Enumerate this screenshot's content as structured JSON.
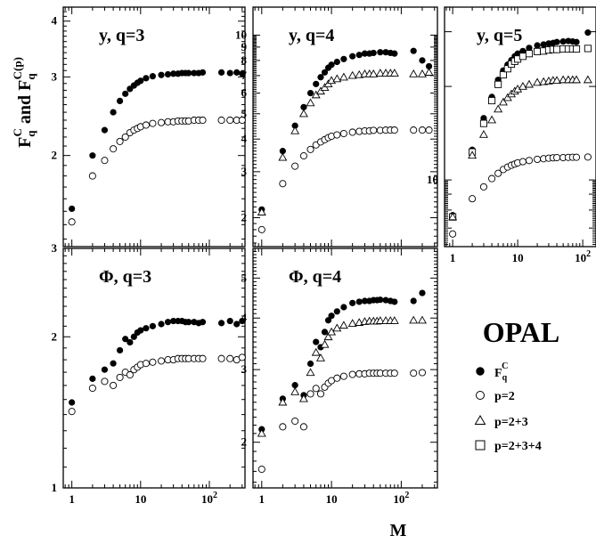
{
  "figure": {
    "ylabel_main": "F",
    "ylabel_sub": "q",
    "ylabel_sup": "C",
    "ylabel_and": " and ",
    "ylabel_sup2": "C(p)",
    "xlabel": "M",
    "experiment": "OPAL"
  },
  "legend": [
    {
      "symbol": "filled-circle",
      "label": "F",
      "sub": "q",
      "sup": "C"
    },
    {
      "symbol": "open-circle",
      "label": "p=2"
    },
    {
      "symbol": "open-triangle",
      "label": "p=2+3"
    },
    {
      "symbol": "open-square",
      "label": "p=2+3+4"
    }
  ],
  "chart_data": [
    {
      "type": "scatter",
      "title": "y, q=3",
      "xscale": "log",
      "yscale": "log",
      "xlim": [
        0.75,
        330
      ],
      "ylim": [
        1.25,
        4.3
      ],
      "x_ticks": [],
      "y_ticks": [
        "2",
        "3",
        "4"
      ],
      "series": [
        {
          "name": "F_q^C",
          "marker": "filled-circle",
          "x": [
            1,
            2,
            3,
            4,
            5,
            6,
            7,
            8,
            9,
            10,
            12,
            15,
            20,
            25,
            30,
            35,
            40,
            45,
            50,
            60,
            70,
            80,
            150,
            200,
            250,
            300
          ],
          "y": [
            1.52,
            2.0,
            2.28,
            2.5,
            2.65,
            2.75,
            2.82,
            2.87,
            2.91,
            2.94,
            2.98,
            3.01,
            3.03,
            3.04,
            3.05,
            3.05,
            3.06,
            3.06,
            3.06,
            3.06,
            3.06,
            3.07,
            3.07,
            3.06,
            3.07,
            3.05
          ]
        },
        {
          "name": "p=2",
          "marker": "open-circle",
          "x": [
            1,
            2,
            3,
            4,
            5,
            6,
            7,
            8,
            9,
            10,
            12,
            15,
            20,
            25,
            30,
            35,
            40,
            45,
            50,
            60,
            70,
            80,
            150,
            200,
            250,
            300
          ],
          "y": [
            1.42,
            1.8,
            1.95,
            2.07,
            2.15,
            2.2,
            2.25,
            2.28,
            2.3,
            2.32,
            2.34,
            2.36,
            2.37,
            2.38,
            2.38,
            2.39,
            2.39,
            2.39,
            2.39,
            2.4,
            2.4,
            2.4,
            2.4,
            2.4,
            2.4,
            2.4
          ]
        }
      ]
    },
    {
      "type": "scatter",
      "title": "y, q=4",
      "xscale": "log",
      "yscale": "log",
      "xlim": [
        0.75,
        330
      ],
      "ylim": [
        1.55,
        12.8
      ],
      "x_ticks": [],
      "y_ticks": [
        "2",
        "3",
        "4",
        "5",
        "6",
        "7",
        "8",
        "9",
        "10"
      ],
      "series": [
        {
          "name": "F_q^C",
          "marker": "filled-circle",
          "x": [
            1,
            2,
            3,
            4,
            5,
            6,
            7,
            8,
            9,
            10,
            12,
            15,
            20,
            25,
            30,
            35,
            40,
            50,
            60,
            70,
            80,
            150,
            200,
            250
          ],
          "y": [
            2.15,
            3.6,
            4.5,
            5.3,
            6.0,
            6.5,
            6.9,
            7.2,
            7.5,
            7.7,
            7.9,
            8.1,
            8.3,
            8.4,
            8.5,
            8.5,
            8.55,
            8.6,
            8.6,
            8.55,
            8.5,
            8.7,
            8.0,
            7.6
          ]
        },
        {
          "name": "p=2+3",
          "marker": "open-triangle",
          "x": [
            1,
            2,
            3,
            4,
            5,
            6,
            7,
            8,
            9,
            10,
            12,
            15,
            20,
            25,
            30,
            35,
            40,
            50,
            60,
            70,
            80,
            150,
            200,
            250
          ],
          "y": [
            2.1,
            3.4,
            4.3,
            5.0,
            5.5,
            5.9,
            6.1,
            6.3,
            6.5,
            6.7,
            6.8,
            6.9,
            7.0,
            7.05,
            7.1,
            7.1,
            7.1,
            7.15,
            7.15,
            7.15,
            7.15,
            7.1,
            7.1,
            7.2
          ]
        },
        {
          "name": "p=2",
          "marker": "open-circle",
          "x": [
            1,
            2,
            3,
            4,
            5,
            6,
            7,
            8,
            9,
            10,
            12,
            15,
            20,
            25,
            30,
            35,
            40,
            50,
            60,
            70,
            80,
            150,
            200,
            250
          ],
          "y": [
            1.8,
            2.7,
            3.15,
            3.45,
            3.65,
            3.8,
            3.9,
            3.98,
            4.05,
            4.1,
            4.15,
            4.2,
            4.25,
            4.28,
            4.3,
            4.3,
            4.32,
            4.32,
            4.33,
            4.33,
            4.33,
            4.33,
            4.33,
            4.33
          ]
        }
      ]
    },
    {
      "type": "scatter",
      "title": "y, q=5",
      "xscale": "log",
      "yscale": "log",
      "xlim": [
        0.75,
        160
      ],
      "ylim": [
        6.1,
        36
      ],
      "x_ticks": [
        "1",
        "10",
        "10^2"
      ],
      "y_ticks": [
        "10"
      ],
      "series": [
        {
          "name": "F_q^C",
          "marker": "filled-circle",
          "x": [
            1,
            2,
            3,
            4,
            5,
            6,
            7,
            8,
            9,
            10,
            12,
            15,
            20,
            25,
            30,
            35,
            40,
            50,
            60,
            70,
            80,
            120
          ],
          "y": [
            7.7,
            12.5,
            15.8,
            18.5,
            21.0,
            22.5,
            23.5,
            24.3,
            25.0,
            25.5,
            26.0,
            26.6,
            27.1,
            27.3,
            27.5,
            27.6,
            27.8,
            27.9,
            28.0,
            27.9,
            27.8,
            29.8
          ]
        },
        {
          "name": "p=2+3+4",
          "marker": "open-square",
          "x": [
            1,
            2,
            3,
            4,
            5,
            6,
            7,
            8,
            9,
            10,
            12,
            15,
            20,
            25,
            30,
            35,
            40,
            50,
            60,
            70,
            80,
            120
          ],
          "y": [
            7.6,
            12.3,
            15.2,
            18.0,
            20.3,
            21.8,
            22.8,
            23.6,
            24.1,
            24.5,
            25.0,
            25.5,
            25.9,
            26.0,
            26.2,
            26.3,
            26.3,
            26.4,
            26.4,
            26.4,
            26.4,
            26.5
          ]
        },
        {
          "name": "p=2+3",
          "marker": "open-triangle",
          "x": [
            1,
            2,
            3,
            4,
            5,
            6,
            7,
            8,
            9,
            10,
            12,
            15,
            20,
            25,
            30,
            35,
            40,
            50,
            60,
            70,
            80,
            120
          ],
          "y": [
            7.6,
            12.0,
            14.0,
            15.6,
            16.9,
            17.8,
            18.4,
            18.9,
            19.3,
            19.6,
            20.0,
            20.3,
            20.6,
            20.7,
            20.8,
            20.9,
            20.9,
            21.0,
            21.0,
            21.0,
            21.0,
            21.0
          ]
        },
        {
          "name": "p=2",
          "marker": "open-circle",
          "x": [
            1,
            2,
            3,
            4,
            5,
            6,
            7,
            8,
            9,
            10,
            12,
            15,
            20,
            25,
            30,
            35,
            40,
            50,
            60,
            70,
            80,
            120
          ],
          "y": [
            6.7,
            8.7,
            9.5,
            10.1,
            10.5,
            10.8,
            11.0,
            11.15,
            11.25,
            11.35,
            11.45,
            11.55,
            11.65,
            11.7,
            11.75,
            11.78,
            11.8,
            11.8,
            11.82,
            11.83,
            11.83,
            11.85
          ]
        }
      ]
    },
    {
      "type": "scatter",
      "title": "Φ, q=3",
      "xscale": "log",
      "yscale": "log",
      "xlim": [
        0.75,
        330
      ],
      "ylim": [
        1.0,
        3.0
      ],
      "x_ticks": [
        "1",
        "10",
        "10^2"
      ],
      "y_ticks": [
        "1",
        "2",
        "3"
      ],
      "series": [
        {
          "name": "F_q^C",
          "marker": "filled-circle",
          "x": [
            1,
            2,
            3,
            4,
            5,
            6,
            7,
            8,
            9,
            10,
            12,
            15,
            20,
            25,
            30,
            35,
            40,
            45,
            50,
            60,
            70,
            80,
            150,
            200,
            250,
            300
          ],
          "y": [
            1.48,
            1.65,
            1.72,
            1.77,
            1.88,
            1.98,
            1.95,
            2.0,
            2.04,
            2.06,
            2.08,
            2.1,
            2.12,
            2.14,
            2.15,
            2.15,
            2.15,
            2.14,
            2.14,
            2.14,
            2.13,
            2.14,
            2.13,
            2.15,
            2.12,
            2.15
          ]
        },
        {
          "name": "p=2",
          "marker": "open-circle",
          "x": [
            1,
            2,
            3,
            4,
            5,
            6,
            7,
            8,
            9,
            10,
            12,
            15,
            20,
            25,
            30,
            35,
            40,
            45,
            50,
            60,
            70,
            80,
            150,
            200,
            250,
            300
          ],
          "y": [
            1.42,
            1.58,
            1.63,
            1.6,
            1.66,
            1.7,
            1.68,
            1.72,
            1.74,
            1.76,
            1.77,
            1.78,
            1.79,
            1.8,
            1.8,
            1.81,
            1.81,
            1.81,
            1.81,
            1.81,
            1.81,
            1.81,
            1.81,
            1.81,
            1.8,
            1.82
          ]
        }
      ]
    },
    {
      "type": "scatter",
      "title": "Φ, q=4",
      "xscale": "log",
      "yscale": "log",
      "xlim": [
        0.75,
        330
      ],
      "ylim": [
        1.55,
        5.9
      ],
      "x_ticks": [
        "1",
        "10",
        "10^2"
      ],
      "y_ticks": [
        "2",
        "3",
        "4",
        "5"
      ],
      "series": [
        {
          "name": "F_q^C",
          "marker": "filled-circle",
          "x": [
            1,
            2,
            3,
            4,
            5,
            6,
            7,
            8,
            9,
            10,
            12,
            15,
            20,
            25,
            30,
            35,
            40,
            45,
            50,
            60,
            70,
            80,
            150,
            200
          ],
          "y": [
            2.15,
            2.55,
            2.75,
            2.6,
            3.1,
            3.5,
            3.4,
            3.7,
            3.95,
            4.05,
            4.15,
            4.25,
            4.35,
            4.38,
            4.4,
            4.4,
            4.42,
            4.42,
            4.43,
            4.42,
            4.4,
            4.38,
            4.4,
            4.6
          ]
        },
        {
          "name": "p=2+3",
          "marker": "open-triangle",
          "x": [
            1,
            2,
            3,
            4,
            5,
            6,
            7,
            8,
            9,
            10,
            12,
            15,
            20,
            25,
            30,
            35,
            40,
            45,
            50,
            60,
            70,
            80,
            150,
            200
          ],
          "y": [
            2.1,
            2.5,
            2.65,
            2.55,
            2.95,
            3.3,
            3.2,
            3.45,
            3.6,
            3.7,
            3.78,
            3.84,
            3.88,
            3.9,
            3.92,
            3.93,
            3.93,
            3.93,
            3.94,
            3.94,
            3.94,
            3.94,
            3.95,
            3.95
          ]
        },
        {
          "name": "p=2",
          "marker": "open-circle",
          "x": [
            1,
            2,
            3,
            4,
            5,
            6,
            7,
            8,
            9,
            10,
            12,
            15,
            20,
            25,
            30,
            35,
            40,
            45,
            50,
            60,
            70,
            80,
            150,
            200
          ],
          "y": [
            1.72,
            2.18,
            2.25,
            2.18,
            2.62,
            2.7,
            2.62,
            2.72,
            2.78,
            2.82,
            2.86,
            2.89,
            2.92,
            2.93,
            2.93,
            2.94,
            2.94,
            2.94,
            2.94,
            2.94,
            2.94,
            2.94,
            2.94,
            2.95
          ]
        }
      ]
    }
  ]
}
